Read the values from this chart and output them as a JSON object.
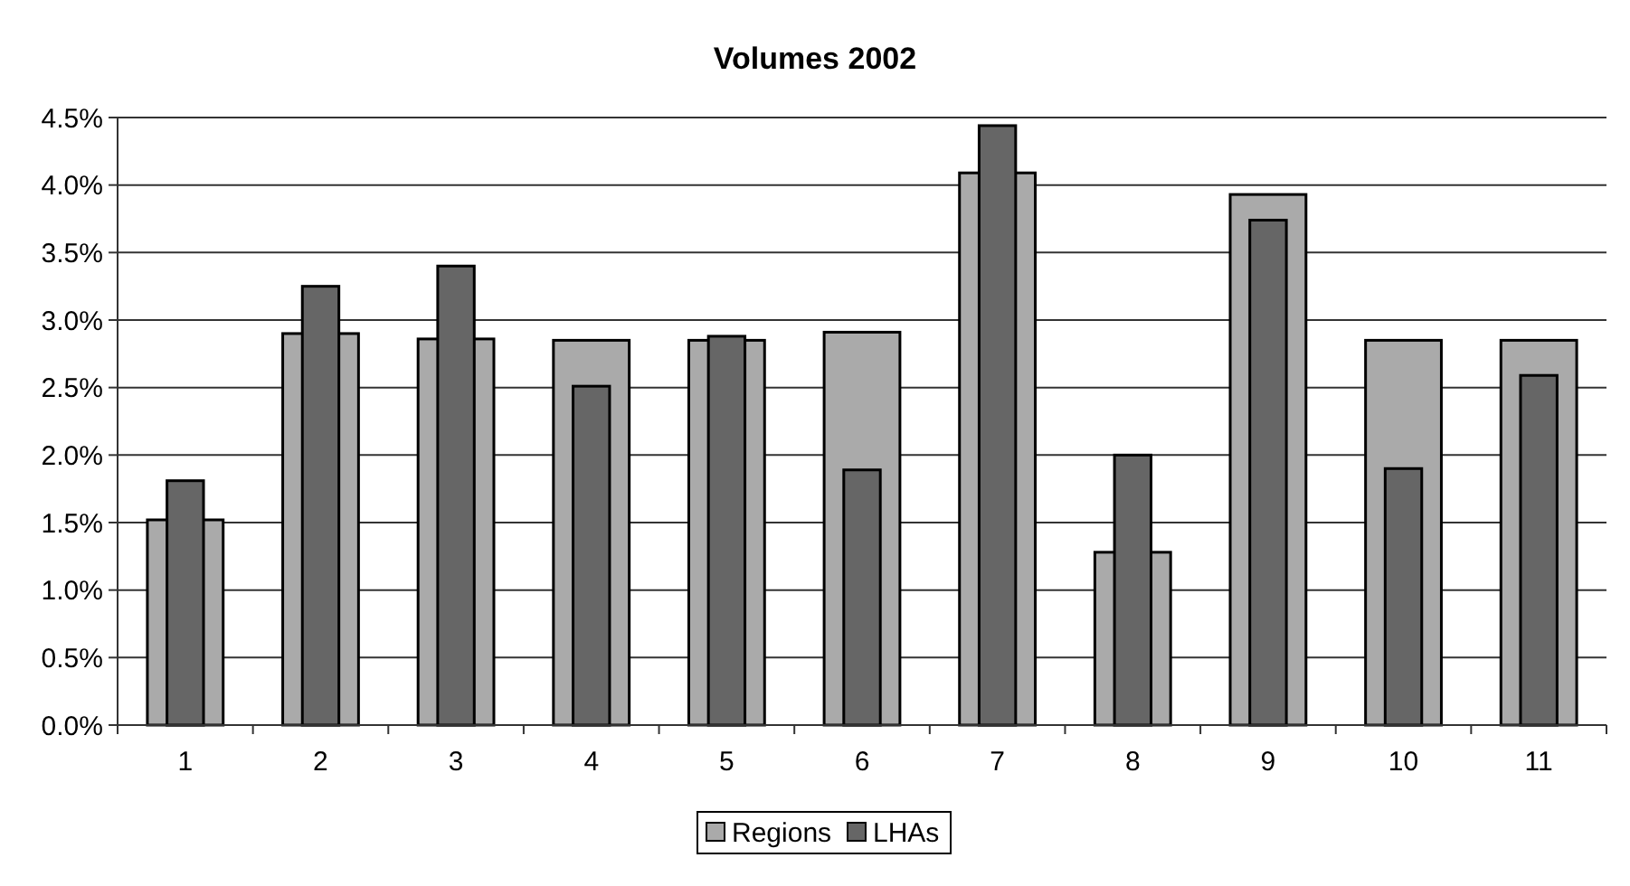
{
  "chart_data": {
    "type": "bar",
    "title": "Volumes 2002",
    "categories": [
      "1",
      "2",
      "3",
      "4",
      "5",
      "6",
      "7",
      "8",
      "9",
      "10",
      "11"
    ],
    "series": [
      {
        "name": "Regions",
        "color": "#aaaaaa",
        "values": [
          1.52,
          2.9,
          2.86,
          2.85,
          2.85,
          2.91,
          4.09,
          1.28,
          3.93,
          2.85,
          2.85
        ]
      },
      {
        "name": "LHAs",
        "color": "#666666",
        "values": [
          1.81,
          3.25,
          3.4,
          2.51,
          2.88,
          1.89,
          4.44,
          2.0,
          3.74,
          1.9,
          2.59
        ]
      }
    ],
    "ylim": [
      0,
      4.5
    ],
    "yticks": [
      {
        "value": 0,
        "label": "0.0%"
      },
      {
        "value": 0.5,
        "label": "0.5%"
      },
      {
        "value": 1,
        "label": "1.0%"
      },
      {
        "value": 1.5,
        "label": "1.5%"
      },
      {
        "value": 2,
        "label": "2.0%"
      },
      {
        "value": 2.5,
        "label": "2.5%"
      },
      {
        "value": 3,
        "label": "3.0%"
      },
      {
        "value": 3.5,
        "label": "3.5%"
      },
      {
        "value": 4,
        "label": "4.0%"
      },
      {
        "value": 4.5,
        "label": "4.5%"
      }
    ],
    "grid": "y",
    "legend": "bottom"
  }
}
